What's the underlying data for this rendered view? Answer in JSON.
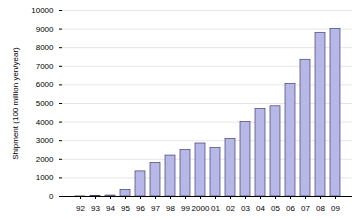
{
  "chart_data": {
    "type": "bar",
    "y_label": "Shipment (100 million yen/year)",
    "categories": [
      "92",
      "93",
      "94",
      "95",
      "96",
      "97",
      "98",
      "99",
      "2000",
      "01",
      "02",
      "03",
      "04",
      "05",
      "06",
      "07",
      "08",
      "09"
    ],
    "values": [
      5,
      20,
      50,
      350,
      1350,
      1800,
      2200,
      2500,
      2850,
      2600,
      3100,
      4000,
      4700,
      4850,
      6050,
      7350,
      8800,
      9000
    ],
    "color": "#b8b8e8",
    "ylim": [
      0,
      10000
    ],
    "yticks": [
      0,
      1000,
      2000,
      3000,
      4000,
      5000,
      6000,
      7000,
      8000,
      9000,
      10000
    ],
    "grid": true
  }
}
